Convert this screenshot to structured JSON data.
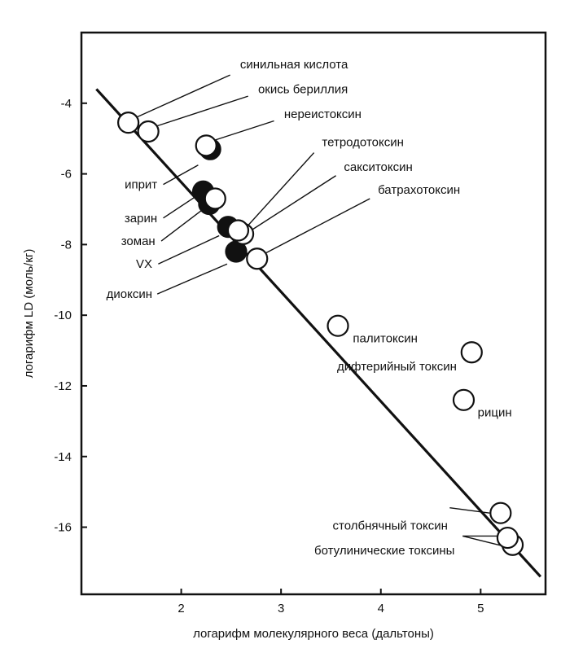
{
  "chart_data": {
    "type": "scatter",
    "xlabel": "логарифм молекулярного веса (дальтоны)",
    "ylabel": "логарифм LD (моль/кг)",
    "xlim": [
      1.0,
      5.65
    ],
    "ylim": [
      -17.9,
      -2.0
    ],
    "x_ticks": [
      "2",
      "3",
      "4",
      "5"
    ],
    "y_ticks": [
      "-4",
      "-6",
      "-8",
      "-10",
      "-12",
      "-14",
      "-16"
    ],
    "trend_line": {
      "x": [
        1.15,
        5.6
      ],
      "y": [
        -3.6,
        -17.4
      ]
    },
    "points": [
      {
        "x": 1.47,
        "y": -4.55,
        "filled": false
      },
      {
        "x": 1.67,
        "y": -4.8,
        "filled": false
      },
      {
        "x": 2.29,
        "y": -5.3,
        "filled": true
      },
      {
        "x": 2.25,
        "y": -5.2,
        "filled": false
      },
      {
        "x": 2.22,
        "y": -6.5,
        "filled": true
      },
      {
        "x": 2.28,
        "y": -6.85,
        "filled": true
      },
      {
        "x": 2.34,
        "y": -6.7,
        "filled": false
      },
      {
        "x": 2.47,
        "y": -7.5,
        "filled": true
      },
      {
        "x": 2.62,
        "y": -7.7,
        "filled": false
      },
      {
        "x": 2.57,
        "y": -7.6,
        "filled": false
      },
      {
        "x": 2.55,
        "y": -8.2,
        "filled": true
      },
      {
        "x": 2.76,
        "y": -8.4,
        "filled": false
      },
      {
        "x": 3.57,
        "y": -10.3,
        "filled": false
      },
      {
        "x": 4.91,
        "y": -11.05,
        "filled": false
      },
      {
        "x": 4.83,
        "y": -12.4,
        "filled": false
      },
      {
        "x": 5.2,
        "y": -15.6,
        "filled": false
      },
      {
        "x": 5.32,
        "y": -16.5,
        "filled": false
      },
      {
        "x": 5.27,
        "y": -16.3,
        "filled": false
      }
    ],
    "labels": [
      {
        "text": "синильная кислота",
        "anchor": "start",
        "tx": 2.59,
        "ty": -2.9,
        "leaders": [
          [
            2.49,
            -3.2,
            1.55,
            -4.4
          ]
        ]
      },
      {
        "text": "окись бериллия",
        "anchor": "start",
        "tx": 2.77,
        "ty": -3.6,
        "leaders": [
          [
            2.67,
            -3.8,
            1.75,
            -4.65
          ]
        ]
      },
      {
        "text": "нереистоксин",
        "anchor": "start",
        "tx": 3.03,
        "ty": -4.3,
        "leaders": [
          [
            2.93,
            -4.5,
            2.33,
            -5.05
          ]
        ]
      },
      {
        "text": "иприт",
        "anchor": "end",
        "tx": 1.76,
        "ty": -6.3,
        "leaders": [
          [
            1.82,
            -6.3,
            2.17,
            -5.75
          ]
        ]
      },
      {
        "text": "тетродотоксин",
        "anchor": "start",
        "tx": 3.41,
        "ty": -5.1,
        "leaders": [
          [
            3.33,
            -5.4,
            2.64,
            -7.55
          ]
        ]
      },
      {
        "text": "сакситоксин",
        "anchor": "start",
        "tx": 3.63,
        "ty": -5.8,
        "leaders": [
          [
            3.55,
            -6.05,
            2.7,
            -7.6
          ]
        ]
      },
      {
        "text": "батрахотоксин",
        "anchor": "start",
        "tx": 3.97,
        "ty": -6.45,
        "leaders": [
          [
            3.89,
            -6.7,
            2.84,
            -8.25
          ]
        ]
      },
      {
        "text": "зарин",
        "anchor": "end",
        "tx": 1.76,
        "ty": -7.25,
        "leaders": [
          [
            1.82,
            -7.25,
            2.14,
            -6.65
          ]
        ]
      },
      {
        "text": "зоман",
        "anchor": "end",
        "tx": 1.74,
        "ty": -7.9,
        "leaders": [
          [
            1.8,
            -7.9,
            2.22,
            -7.0
          ]
        ]
      },
      {
        "text": "VX",
        "anchor": "end",
        "tx": 1.71,
        "ty": -8.55,
        "leaders": [
          [
            1.77,
            -8.55,
            2.38,
            -7.75
          ]
        ]
      },
      {
        "text": "диоксин",
        "anchor": "end",
        "tx": 1.71,
        "ty": -9.4,
        "leaders": [
          [
            1.76,
            -9.4,
            2.46,
            -8.55
          ]
        ]
      },
      {
        "text": "палитоксин",
        "anchor": "start",
        "tx": 3.72,
        "ty": -10.65,
        "leaders": []
      },
      {
        "text": "дифтерийный токсин",
        "anchor": "end",
        "tx": 4.76,
        "ty": -11.45,
        "leaders": []
      },
      {
        "text": "рицин",
        "anchor": "start",
        "tx": 4.97,
        "ty": -12.75,
        "leaders": []
      },
      {
        "text": "столбнячный токсин",
        "anchor": "end",
        "tx": 4.67,
        "ty": -15.95,
        "leaders": [
          [
            4.69,
            -15.45,
            5.09,
            -15.6
          ]
        ]
      },
      {
        "text": "ботулинические токсины",
        "anchor": "end",
        "tx": 4.74,
        "ty": -16.65,
        "leaders": [
          [
            4.82,
            -16.25,
            5.19,
            -16.25
          ],
          [
            4.82,
            -16.25,
            5.25,
            -16.55
          ]
        ]
      }
    ]
  }
}
